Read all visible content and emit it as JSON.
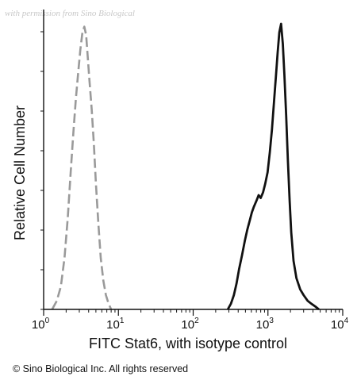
{
  "chart_data": {
    "type": "line",
    "title": "",
    "xlabel": "FITC  Stat6,  with isotype control",
    "ylabel": "Relative Cell Number",
    "xscale": "log",
    "xlim": [
      1,
      10000
    ],
    "ylim": [
      0,
      1
    ],
    "grid": false,
    "xticks": [
      {
        "base": "10",
        "exp": "0"
      },
      {
        "base": "10",
        "exp": "1"
      },
      {
        "base": "10",
        "exp": "2"
      },
      {
        "base": "10",
        "exp": "3"
      },
      {
        "base": "10",
        "exp": "4"
      }
    ],
    "series": [
      {
        "color": "#9a9a9a",
        "dash": "dashed",
        "x": [
          1.3,
          1.5,
          1.7,
          1.9,
          2.1,
          2.3,
          2.5,
          2.7,
          2.9,
          3.1,
          3.3,
          3.5,
          3.7,
          3.9,
          4.1,
          4.4,
          4.7,
          5.0,
          5.4,
          5.8,
          6.3,
          6.8,
          7.4,
          8.0
        ],
        "values": [
          0.0,
          0.03,
          0.08,
          0.18,
          0.32,
          0.48,
          0.62,
          0.74,
          0.83,
          0.91,
          0.97,
          0.99,
          0.96,
          0.88,
          0.8,
          0.7,
          0.58,
          0.44,
          0.3,
          0.18,
          0.1,
          0.05,
          0.02,
          0.0
        ]
      },
      {
        "color": "#111111",
        "dash": "solid",
        "x": [
          290,
          320,
          350,
          380,
          410,
          450,
          490,
          530,
          570,
          610,
          650,
          700,
          750,
          800,
          860,
          920,
          990,
          1060,
          1130,
          1200,
          1280,
          1350,
          1420,
          1500,
          1580,
          1660,
          1750,
          1850,
          1950,
          2050,
          2200,
          2400,
          2700,
          3000,
          3400,
          3800,
          4300,
          4800
        ],
        "values": [
          0.0,
          0.02,
          0.05,
          0.09,
          0.14,
          0.19,
          0.24,
          0.28,
          0.31,
          0.34,
          0.36,
          0.38,
          0.4,
          0.39,
          0.41,
          0.44,
          0.48,
          0.55,
          0.63,
          0.72,
          0.82,
          0.9,
          0.97,
          1.0,
          0.93,
          0.82,
          0.68,
          0.52,
          0.38,
          0.27,
          0.17,
          0.11,
          0.07,
          0.05,
          0.03,
          0.02,
          0.01,
          0.0
        ]
      }
    ]
  },
  "watermark": "with permission from Sino Biological",
  "copyright": "© Sino Biological Inc. All rights reserved"
}
